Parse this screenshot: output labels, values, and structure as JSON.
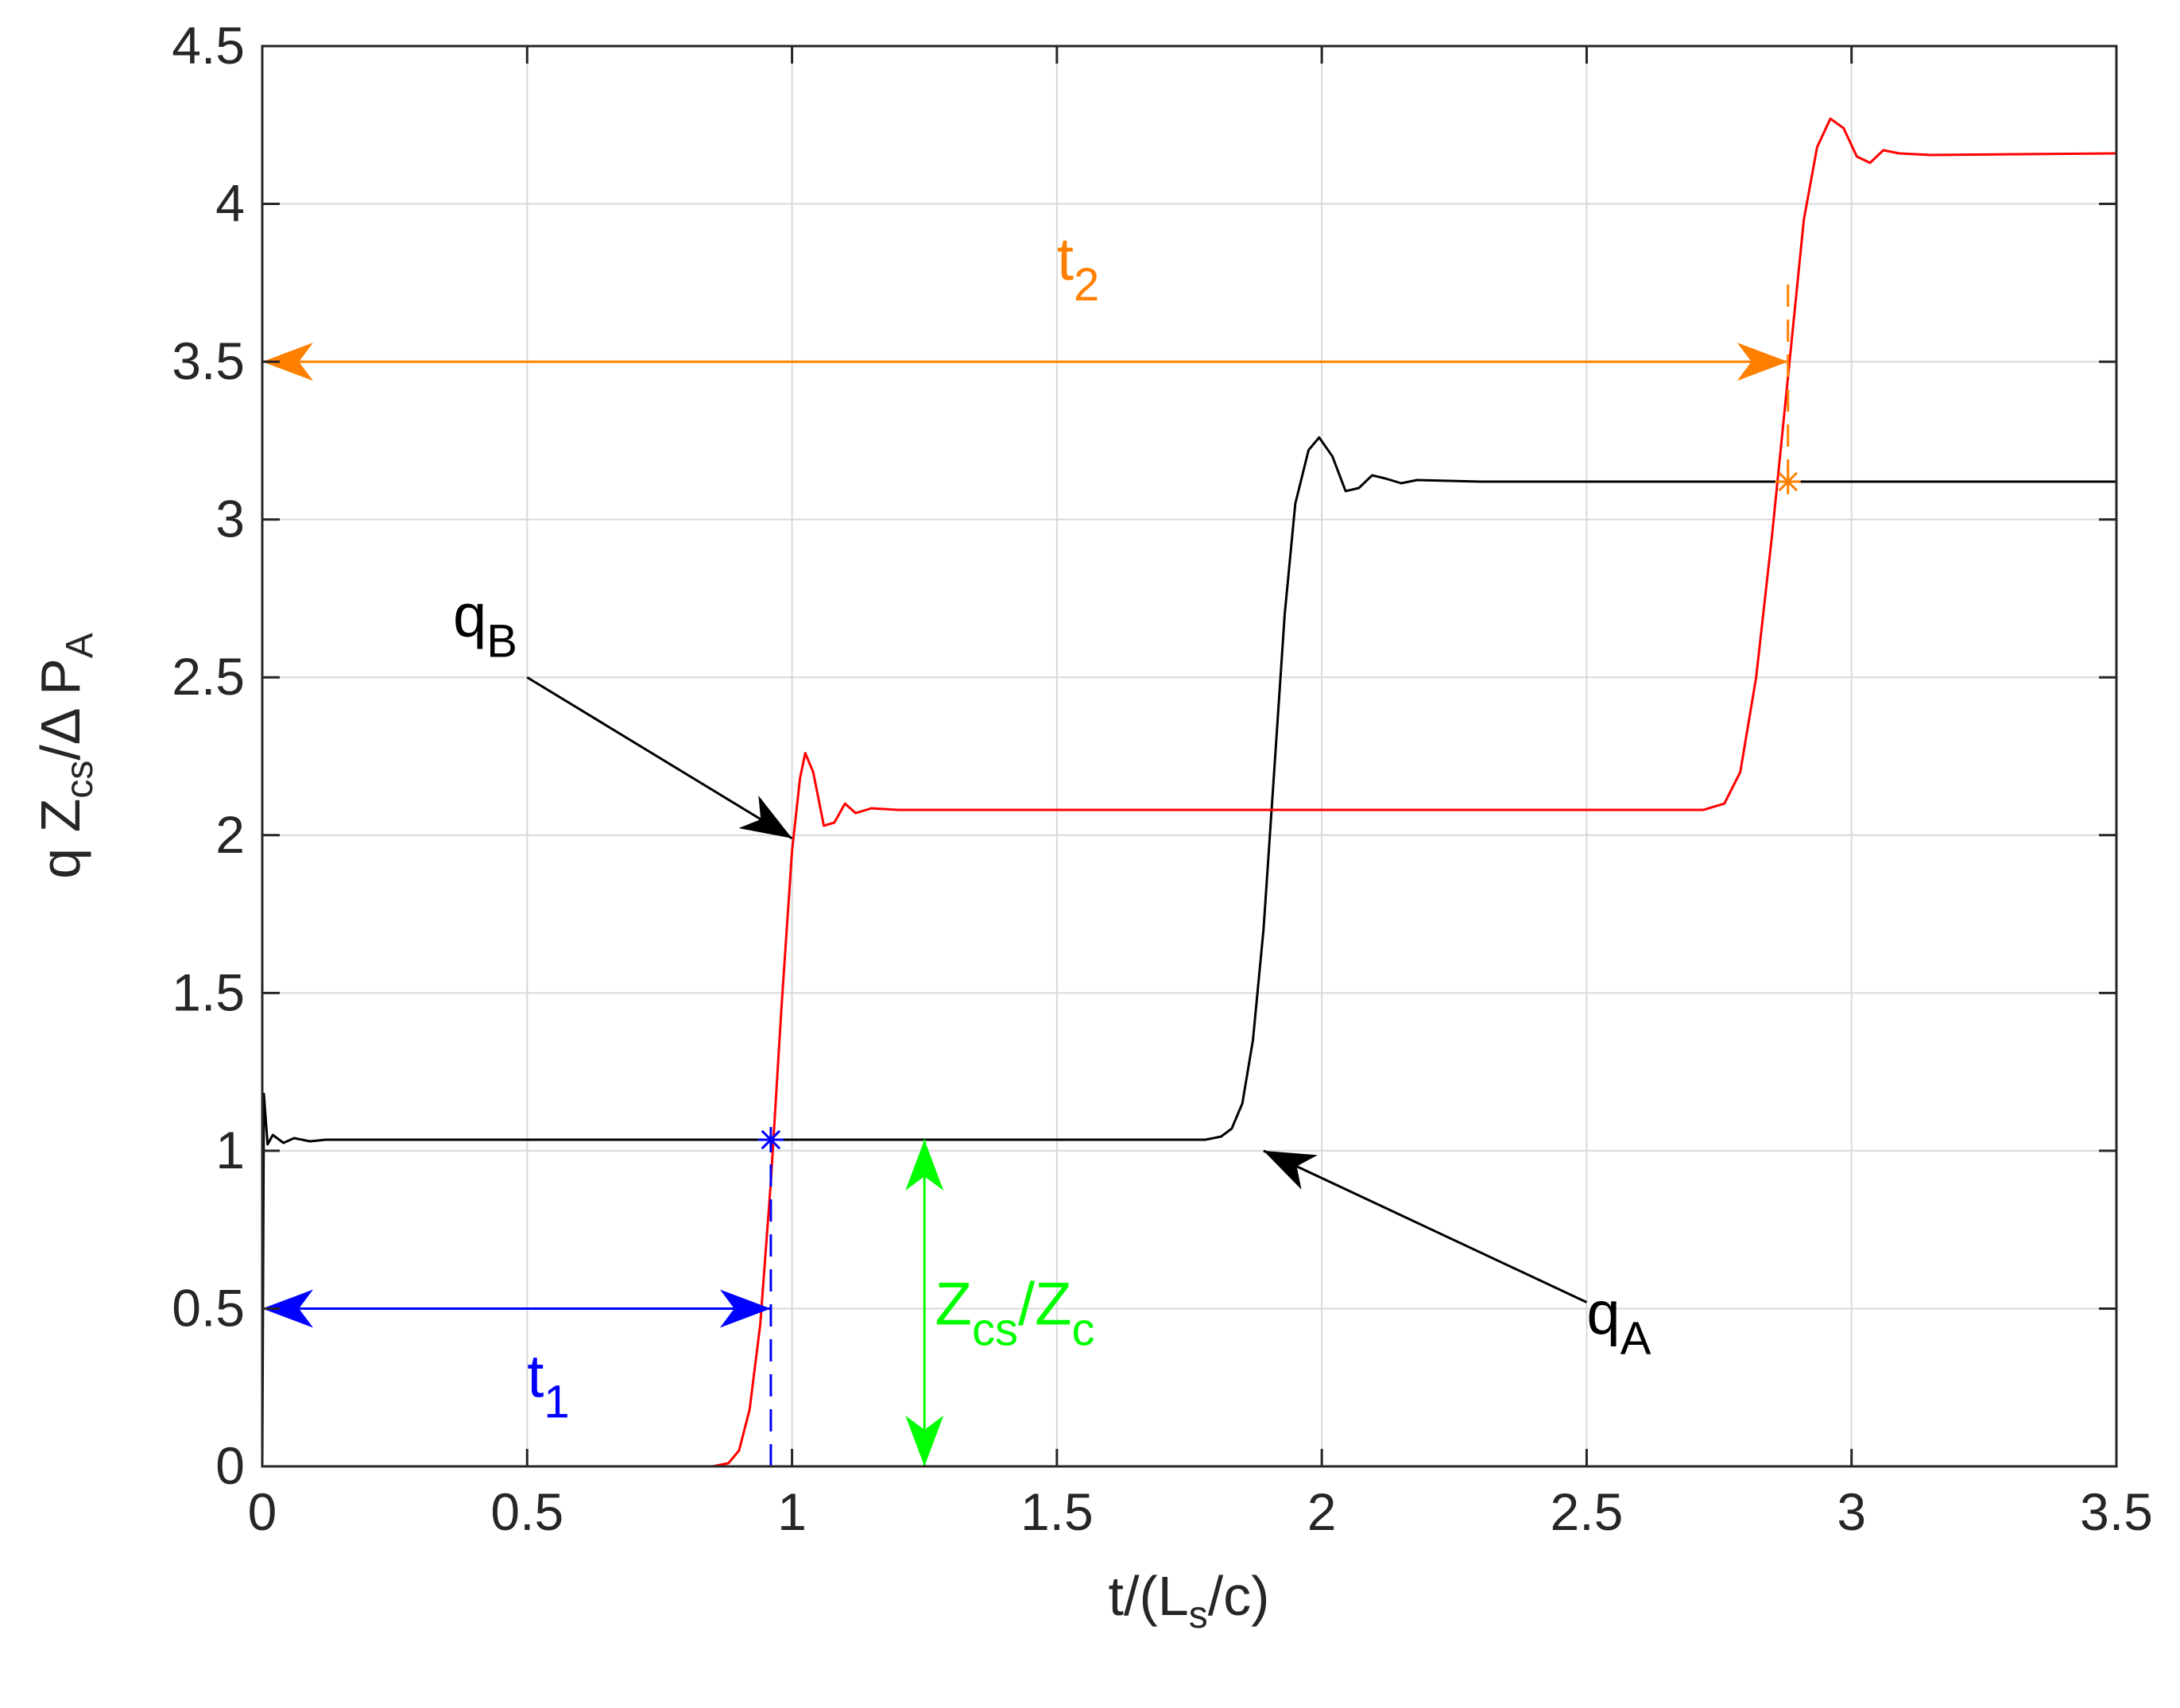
{
  "chart_data": {
    "type": "line",
    "xlabel": {
      "text": "t/(L",
      "sub": "s",
      "tail": "/c)"
    },
    "ylabel": {
      "q": "q Z",
      "qsub": "cs",
      "mid": "/Δ P",
      "psub": "A"
    },
    "xlim": [
      0,
      3.5
    ],
    "ylim": [
      0,
      4.5
    ],
    "grid": true,
    "xticks": [
      0,
      0.5,
      1,
      1.5,
      2,
      2.5,
      3,
      3.5
    ],
    "xtick_labels": [
      "0",
      "0.5",
      "1",
      "1.5",
      "2",
      "2.5",
      "3",
      "3.5"
    ],
    "yticks": [
      0,
      0.5,
      1,
      1.5,
      2,
      2.5,
      3,
      3.5,
      4,
      4.5
    ],
    "ytick_labels": [
      "0",
      "0.5",
      "1",
      "1.5",
      "2",
      "2.5",
      "3",
      "3.5",
      "4",
      "4.5"
    ],
    "series": [
      {
        "name": "q_A",
        "color": "#000000",
        "points": [
          [
            0,
            0
          ],
          [
            0.003,
            1.18
          ],
          [
            0.01,
            1.02
          ],
          [
            0.02,
            1.05
          ],
          [
            0.04,
            1.025
          ],
          [
            0.06,
            1.04
          ],
          [
            0.09,
            1.03
          ],
          [
            0.12,
            1.035
          ],
          [
            0.5,
            1.035
          ],
          [
            1.0,
            1.035
          ],
          [
            1.5,
            1.035
          ],
          [
            1.78,
            1.035
          ],
          [
            1.81,
            1.045
          ],
          [
            1.83,
            1.07
          ],
          [
            1.85,
            1.15
          ],
          [
            1.87,
            1.35
          ],
          [
            1.89,
            1.7
          ],
          [
            1.91,
            2.2
          ],
          [
            1.93,
            2.7
          ],
          [
            1.95,
            3.05
          ],
          [
            1.975,
            3.22
          ],
          [
            1.995,
            3.26
          ],
          [
            2.02,
            3.2
          ],
          [
            2.045,
            3.09
          ],
          [
            2.07,
            3.1
          ],
          [
            2.095,
            3.14
          ],
          [
            2.12,
            3.13
          ],
          [
            2.15,
            3.115
          ],
          [
            2.18,
            3.125
          ],
          [
            2.3,
            3.12
          ],
          [
            3.0,
            3.12
          ],
          [
            3.5,
            3.12
          ]
        ]
      },
      {
        "name": "q_B",
        "color": "#ff0000",
        "points": [
          [
            0,
            0
          ],
          [
            0.5,
            0
          ],
          [
            0.85,
            0
          ],
          [
            0.88,
            0.01
          ],
          [
            0.9,
            0.05
          ],
          [
            0.92,
            0.18
          ],
          [
            0.94,
            0.45
          ],
          [
            0.96,
            0.9
          ],
          [
            0.98,
            1.45
          ],
          [
            1.0,
            1.95
          ],
          [
            1.015,
            2.18
          ],
          [
            1.025,
            2.26
          ],
          [
            1.04,
            2.2
          ],
          [
            1.06,
            2.03
          ],
          [
            1.08,
            2.04
          ],
          [
            1.1,
            2.1
          ],
          [
            1.12,
            2.07
          ],
          [
            1.15,
            2.085
          ],
          [
            1.2,
            2.08
          ],
          [
            2.0,
            2.08
          ],
          [
            2.72,
            2.08
          ],
          [
            2.76,
            2.1
          ],
          [
            2.79,
            2.2
          ],
          [
            2.82,
            2.5
          ],
          [
            2.85,
            2.95
          ],
          [
            2.88,
            3.45
          ],
          [
            2.91,
            3.95
          ],
          [
            2.935,
            4.18
          ],
          [
            2.96,
            4.27
          ],
          [
            2.985,
            4.24
          ],
          [
            3.01,
            4.15
          ],
          [
            3.035,
            4.13
          ],
          [
            3.06,
            4.17
          ],
          [
            3.09,
            4.16
          ],
          [
            3.15,
            4.155
          ],
          [
            3.5,
            4.16
          ]
        ]
      }
    ],
    "markers": [
      {
        "name": "t1-star",
        "x": 0.96,
        "y": 1.035,
        "color": "#0000ff"
      },
      {
        "name": "t2-star",
        "x": 2.88,
        "y": 3.12,
        "color": "#ff8000"
      }
    ],
    "dashed_lines": [
      {
        "name": "t1-dash",
        "x": 0.96,
        "y0": 0,
        "y1": 1.035,
        "color": "#0000ff"
      },
      {
        "name": "t2-dash",
        "x": 2.88,
        "y0": 3.12,
        "y1": 3.75,
        "color": "#ff8000"
      }
    ],
    "double_arrows": [
      {
        "name": "t1-arrow",
        "x0": 0,
        "y0": 0.5,
        "x1": 0.96,
        "y1": 0.5,
        "color": "#0000ff"
      },
      {
        "name": "t2-arrow",
        "x0": 0,
        "y0": 3.5,
        "x1": 2.88,
        "y1": 3.5,
        "color": "#ff8000"
      },
      {
        "name": "zcs-arrow",
        "x0": 1.25,
        "y0": 0,
        "x1": 1.25,
        "y1": 1.035,
        "color": "#00ff00"
      }
    ],
    "pointer_arrows": [
      {
        "name": "qB-pointer",
        "x0": 0.5,
        "y0": 2.5,
        "x1": 1.0,
        "y1": 1.99,
        "color": "#000000"
      },
      {
        "name": "qA-pointer",
        "x0": 2.5,
        "y0": 0.52,
        "x1": 1.89,
        "y1": 1.0,
        "color": "#000000"
      }
    ],
    "annotations": [
      {
        "name": "label-qB",
        "base": "q",
        "sub": "B",
        "x": 0.36,
        "y": 2.63,
        "color": "#000000"
      },
      {
        "name": "label-qA",
        "base": "q",
        "sub": "A",
        "x": 2.5,
        "y": 0.42,
        "color": "#000000"
      },
      {
        "name": "label-t1",
        "base": "t",
        "sub": "1",
        "x": 0.5,
        "y": 0.22,
        "color": "#0000ff"
      },
      {
        "name": "label-t2",
        "base": "t",
        "sub": "2",
        "x": 1.5,
        "y": 3.76,
        "color": "#ff8000"
      },
      {
        "name": "label-zcs",
        "base": "Z",
        "sub": "cs",
        "mid": "/Z",
        "sub2": "c",
        "x": 1.27,
        "y": 0.45,
        "color": "#00ff00"
      }
    ]
  }
}
